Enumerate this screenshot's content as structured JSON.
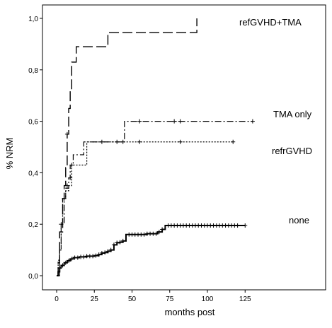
{
  "chart_data": {
    "type": "line",
    "title": "",
    "xlabel": "months post",
    "ylabel": "% NRM",
    "xlim": [
      -3,
      140
    ],
    "ylim": [
      -0.03,
      1.06
    ],
    "xticks": [
      0,
      25,
      50,
      75,
      100,
      125
    ],
    "yticks": [
      0.0,
      0.2,
      0.4,
      0.6,
      0.8,
      1.0
    ],
    "xtick_labels": [
      "0",
      "25",
      "50",
      "75",
      "100",
      "125"
    ],
    "ytick_labels": [
      "0,0",
      "0,2",
      "0,4",
      "0,6",
      "0,8",
      "1,0"
    ],
    "grid": false,
    "legend": "none (series labeled inline)",
    "series": [
      {
        "name": "refGVHD+TMA",
        "dash": "long-dash",
        "points": [
          [
            0,
            0
          ],
          [
            1,
            0.05
          ],
          [
            2,
            0.17
          ],
          [
            4,
            0.3
          ],
          [
            5,
            0.35
          ],
          [
            6,
            0.42
          ],
          [
            7,
            0.55
          ],
          [
            8,
            0.65
          ],
          [
            9,
            0.72
          ],
          [
            10,
            0.83
          ],
          [
            13,
            0.89
          ],
          [
            34,
            0.89
          ],
          [
            34,
            0.945
          ],
          [
            93,
            0.945
          ],
          [
            93,
            1.0
          ]
        ],
        "censored": [
          [
            7,
            0.55
          ]
        ]
      },
      {
        "name": "TMA only",
        "dash": "dash-dot",
        "points": [
          [
            0,
            0
          ],
          [
            2,
            0.1
          ],
          [
            3,
            0.2
          ],
          [
            5,
            0.3
          ],
          [
            6,
            0.34
          ],
          [
            8,
            0.38
          ],
          [
            9,
            0.43
          ],
          [
            11,
            0.47
          ],
          [
            18,
            0.52
          ],
          [
            45,
            0.52
          ],
          [
            45,
            0.6
          ],
          [
            130,
            0.6
          ]
        ],
        "censored": [
          [
            3,
            0.2
          ],
          [
            9,
            0.38
          ],
          [
            55,
            0.6
          ],
          [
            78,
            0.6
          ],
          [
            82,
            0.6
          ],
          [
            130,
            0.6
          ]
        ]
      },
      {
        "name": "refrGVHD",
        "dash": "dotted",
        "points": [
          [
            0,
            0
          ],
          [
            1,
            0.06
          ],
          [
            2,
            0.1
          ],
          [
            3,
            0.2
          ],
          [
            4,
            0.3
          ],
          [
            6,
            0.33
          ],
          [
            8,
            0.35
          ],
          [
            10,
            0.43
          ],
          [
            20,
            0.43
          ],
          [
            20,
            0.52
          ],
          [
            117,
            0.52
          ]
        ],
        "censored": [
          [
            5,
            0.3
          ],
          [
            7,
            0.35
          ],
          [
            10,
            0.43
          ],
          [
            30,
            0.52
          ],
          [
            40,
            0.52
          ],
          [
            44,
            0.52
          ],
          [
            55,
            0.52
          ],
          [
            82,
            0.52
          ],
          [
            117,
            0.52
          ]
        ]
      },
      {
        "name": "none",
        "dash": "solid",
        "points": [
          [
            0,
            0
          ],
          [
            1,
            0.015
          ],
          [
            2,
            0.03
          ],
          [
            3,
            0.04
          ],
          [
            5,
            0.05
          ],
          [
            7,
            0.058
          ],
          [
            9,
            0.065
          ],
          [
            11,
            0.07
          ],
          [
            15,
            0.073
          ],
          [
            20,
            0.076
          ],
          [
            25,
            0.078
          ],
          [
            28,
            0.082
          ],
          [
            30,
            0.088
          ],
          [
            32,
            0.09
          ],
          [
            34,
            0.095
          ],
          [
            36,
            0.1
          ],
          [
            38,
            0.12
          ],
          [
            40,
            0.128
          ],
          [
            42,
            0.13
          ],
          [
            44,
            0.135
          ],
          [
            46,
            0.16
          ],
          [
            60,
            0.163
          ],
          [
            67,
            0.17
          ],
          [
            70,
            0.18
          ],
          [
            72,
            0.195
          ],
          [
            125,
            0.195
          ]
        ],
        "censored_x": [
          2,
          4,
          6,
          8,
          10,
          12,
          14,
          16,
          18,
          20,
          22,
          24,
          26,
          28,
          30,
          32,
          34,
          36,
          38,
          40,
          42,
          44,
          48,
          50,
          52,
          54,
          56,
          58,
          60,
          62,
          64,
          66,
          68,
          70,
          74,
          76,
          78,
          80,
          82,
          84,
          86,
          88,
          90,
          92,
          94,
          96,
          98,
          100,
          102,
          104,
          106,
          108,
          110,
          112,
          114,
          116,
          118,
          120,
          125
        ]
      }
    ],
    "series_labels": [
      "refGVHD+TMA",
      "TMA only",
      "refrGVHD",
      "none"
    ]
  }
}
